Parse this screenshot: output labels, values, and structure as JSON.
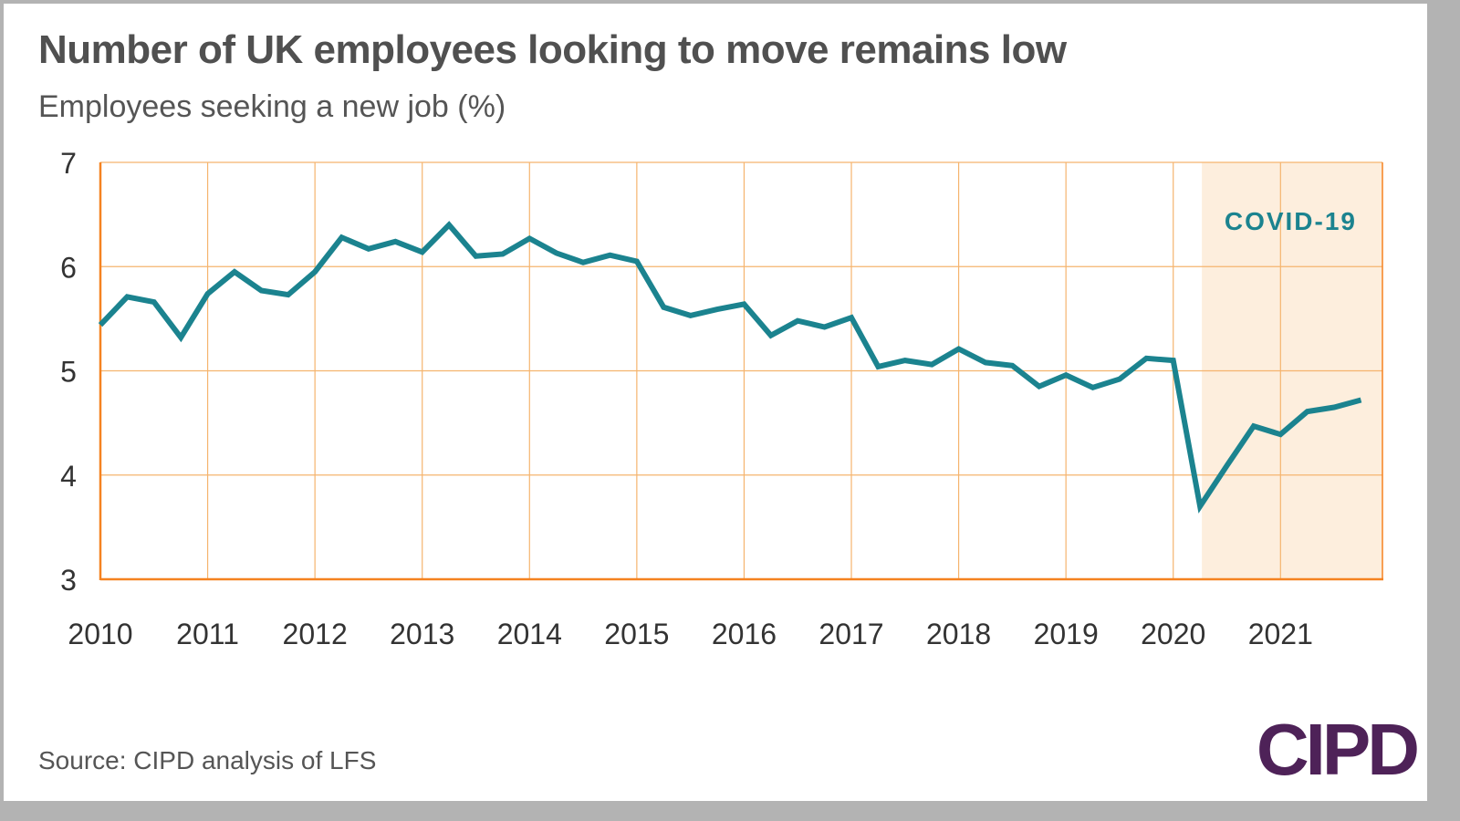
{
  "title": "Number of UK employees looking to move remains low",
  "subtitle": "Employees seeking a new job (%)",
  "source": "Source: CIPD analysis of LFS",
  "logo": "CIPD",
  "colors": {
    "line": "#1b838f",
    "grid": "#f5b46e",
    "axis": "#f58220",
    "covid_band": "#fdeedd",
    "logo": "#4e2258",
    "text": "#505050"
  },
  "chart_data": {
    "type": "line",
    "title": "Number of UK employees looking to move remains low",
    "subtitle": "Employees seeking a new job (%)",
    "xlabel": "",
    "ylabel": "Employees seeking a new job (%)",
    "ylim": [
      3,
      7
    ],
    "xlim": [
      2010,
      2022
    ],
    "yticks": [
      "3",
      "4",
      "5",
      "6",
      "7"
    ],
    "xticks": [
      "2010",
      "2011",
      "2012",
      "2013",
      "2014",
      "2015",
      "2016",
      "2017",
      "2018",
      "2019",
      "2020",
      "2021"
    ],
    "grid": true,
    "frequency": "quarterly",
    "annotations": [
      {
        "label": "COVID-19",
        "shaded_from": 2020.25,
        "shaded_to": 2022
      }
    ],
    "series": [
      {
        "name": "Employees seeking a new job (%)",
        "x": [
          2010.0,
          2010.25,
          2010.5,
          2010.75,
          2011.0,
          2011.25,
          2011.5,
          2011.75,
          2012.0,
          2012.25,
          2012.5,
          2012.75,
          2013.0,
          2013.25,
          2013.5,
          2013.75,
          2014.0,
          2014.25,
          2014.5,
          2014.75,
          2015.0,
          2015.25,
          2015.5,
          2015.75,
          2016.0,
          2016.25,
          2016.5,
          2016.75,
          2017.0,
          2017.25,
          2017.5,
          2017.75,
          2018.0,
          2018.25,
          2018.5,
          2018.75,
          2019.0,
          2019.25,
          2019.5,
          2019.75,
          2020.0,
          2020.25,
          2020.5,
          2020.75,
          2021.0,
          2021.25,
          2021.5,
          2021.75
        ],
        "values": [
          5.44,
          5.71,
          5.66,
          5.32,
          5.74,
          5.95,
          5.77,
          5.73,
          5.95,
          6.28,
          6.17,
          6.24,
          6.14,
          6.4,
          6.1,
          6.12,
          6.27,
          6.13,
          6.04,
          6.11,
          6.05,
          5.61,
          5.53,
          5.59,
          5.64,
          5.34,
          5.48,
          5.42,
          5.51,
          5.04,
          5.1,
          5.06,
          5.21,
          5.08,
          5.05,
          4.85,
          4.96,
          4.84,
          4.92,
          5.12,
          5.1,
          3.7,
          4.09,
          4.47,
          4.39,
          4.61,
          4.65,
          4.72
        ]
      }
    ]
  }
}
